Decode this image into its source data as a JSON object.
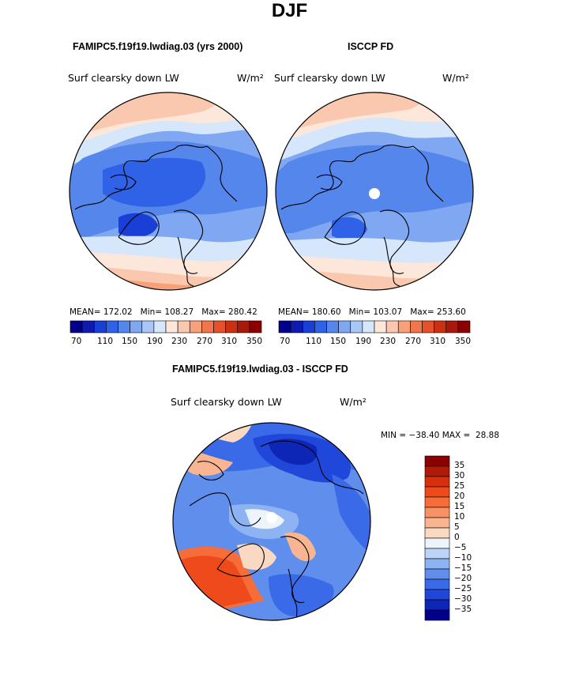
{
  "title": "DJF",
  "panels": [
    {
      "case": "FAMIPC5.f19f19.lwdiag.03 (yrs 2000)",
      "variable": "Surf clearsky down LW",
      "units": "W/m²",
      "stats": {
        "mean_label": "MEAN=",
        "mean": "172.02",
        "min_label": "Min=",
        "min": "108.27",
        "max_label": "Max=",
        "max": "280.42"
      }
    },
    {
      "case": "ISCCP FD",
      "variable": "Surf clearsky down LW",
      "units": "W/m²",
      "stats": {
        "mean_label": "MEAN=",
        "mean": "180.60",
        "min_label": "Min=",
        "min": "103.07",
        "max_label": "Max=",
        "max": "253.60"
      }
    }
  ],
  "colorbar": {
    "ticks": [
      "70",
      "110",
      "150",
      "190",
      "230",
      "270",
      "310",
      "350"
    ],
    "colors": [
      "#00008b",
      "#0d1bb3",
      "#1a3fd6",
      "#2f62e6",
      "#5586ec",
      "#7fa7f2",
      "#a9c6f7",
      "#d6e6fb",
      "#fde7db",
      "#fac8ae",
      "#f7a07a",
      "#f2764c",
      "#e5512b",
      "#cc3012",
      "#a51a0b",
      "#8b0000"
    ]
  },
  "diff": {
    "case": "FAMIPC5.f19f19.lwdiag.03 - ISCCP FD",
    "variable": "Surf clearsky down LW",
    "units": "W/m²",
    "min_label": "MIN =",
    "min": "−38.40",
    "max_label": "MAX =",
    "max": "28.88",
    "legend_labels": [
      "35",
      "30",
      "25",
      "20",
      "15",
      "10",
      "5",
      "0",
      "−5",
      "−10",
      "−15",
      "−20",
      "−25",
      "−30",
      "−35"
    ],
    "legend_colors": [
      "#8b0000",
      "#b11a08",
      "#d6300f",
      "#ee4a1c",
      "#f76d3a",
      "#f89164",
      "#f9b592",
      "#fad9c2",
      "#eef4fc",
      "#bcd4f8",
      "#8eb3f2",
      "#5f8eed",
      "#3a6ae7",
      "#1f47d9",
      "#0d26b5",
      "#00008b"
    ]
  }
}
